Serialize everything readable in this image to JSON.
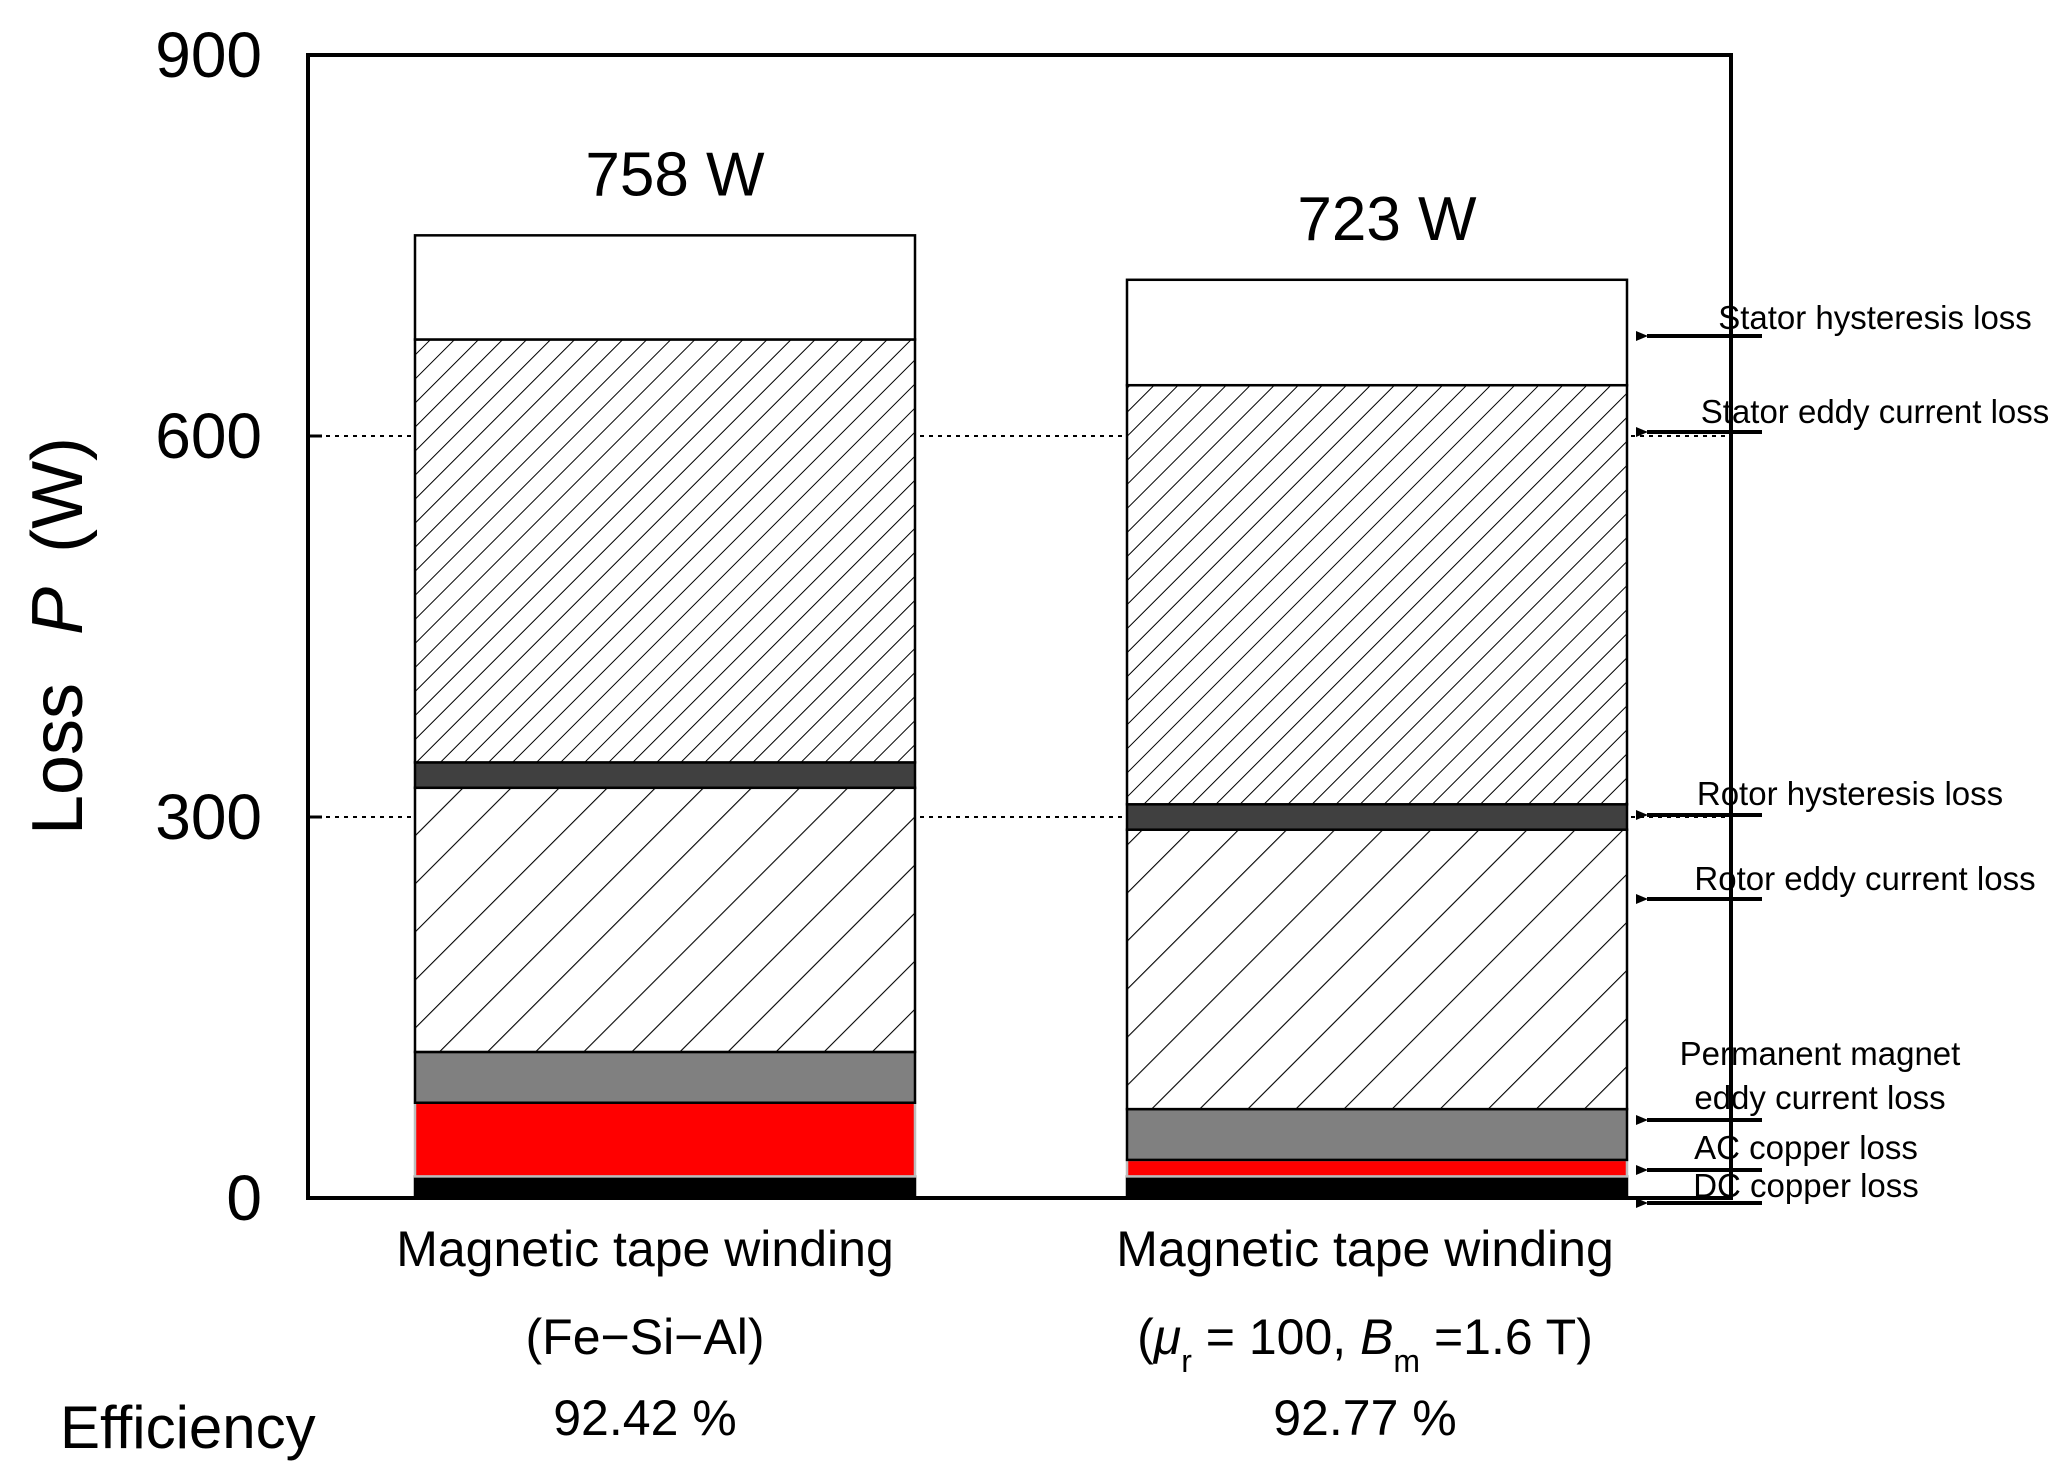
{
  "chart_data": {
    "type": "bar",
    "stacked": true,
    "ylabel": "Loss",
    "ylabel_var": "P",
    "ylabel_unit": "(W)",
    "ylim": [
      0,
      900
    ],
    "yticks": [
      0,
      300,
      600,
      900
    ],
    "ytick_labels": [
      "0",
      "300",
      "600",
      "900"
    ],
    "gridlines": [
      300,
      600
    ],
    "categories": [
      {
        "line1": "Magnetic tape winding",
        "line2": "(Fe−Si−Al)",
        "total_label": "758 W",
        "efficiency": "92.42 %"
      },
      {
        "line1": "Magnetic tape winding",
        "line2_parts": [
          "(",
          "μ",
          "r",
          " = 100, ",
          "B",
          "m",
          " =1.6 T)"
        ],
        "total_label": "723 W",
        "efficiency": "92.77 %"
      }
    ],
    "efficiency_label": "Efficiency",
    "series": [
      {
        "name": "DC copper loss",
        "values": [
          17,
          17
        ],
        "fill": "#000000",
        "pattern": "solid"
      },
      {
        "name": "AC copper loss",
        "values": [
          58,
          13
        ],
        "fill": "#ff0000",
        "pattern": "solid"
      },
      {
        "name": "Permanent magnet eddy current loss",
        "name_lines": [
          "Permanent magnet",
          "eddy current loss"
        ],
        "values": [
          40,
          40
        ],
        "fill": "#808080",
        "pattern": "solid"
      },
      {
        "name": "Rotor eddy current loss",
        "values": [
          208,
          220
        ],
        "fill": "#ffffff",
        "pattern": "hatch-wide"
      },
      {
        "name": "Rotor hysteresis loss",
        "values": [
          20,
          20
        ],
        "fill": "#404040",
        "pattern": "solid"
      },
      {
        "name": "Stator eddy current loss",
        "values": [
          333,
          330
        ],
        "fill": "#ffffff",
        "pattern": "hatch-dense"
      },
      {
        "name": "Stator hysteresis loss",
        "values": [
          82,
          83
        ],
        "fill": "#ffffff",
        "pattern": "solid"
      }
    ],
    "legend_placement": "right",
    "colors": {
      "dc": "#000000",
      "ac": "#ff0000",
      "pm": "#808080",
      "rotor_hyst": "#404040"
    }
  }
}
